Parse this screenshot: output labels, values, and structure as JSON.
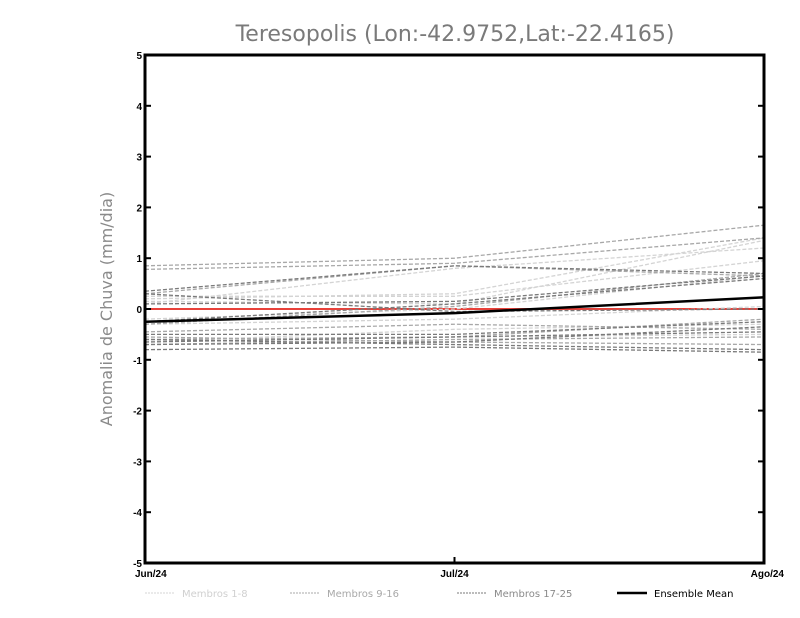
{
  "chart_data": {
    "type": "line",
    "title": "Teresopolis (Lon:-42.9752,Lat:-22.4165)",
    "xlabel": "",
    "ylabel": "Anomalia de Chuva (mm/dia)",
    "categories": [
      "Jun/24",
      "Jul/24",
      "Ago/24"
    ],
    "ylim": [
      -5,
      5
    ],
    "yticks": [
      "-5",
      "-4",
      "-3",
      "-2",
      "-1",
      "0",
      "1",
      "2",
      "3",
      "4",
      "5"
    ],
    "grid": false,
    "legend_position": "bottom",
    "reference_line": {
      "value": 0,
      "color": "#e8413a"
    },
    "groups": [
      {
        "name": "Membros 1-8",
        "color": "#d4d4d4",
        "dashed": true,
        "series": [
          [
            0.2,
            0.3,
            1.4
          ],
          [
            0.15,
            0.1,
            1.35
          ],
          [
            -0.2,
            0.0,
            0.65
          ],
          [
            0.25,
            0.25,
            0.95
          ],
          [
            -0.6,
            -0.55,
            -0.5
          ],
          [
            -0.65,
            -0.4,
            -0.3
          ],
          [
            0.1,
            0.8,
            1.2
          ],
          [
            -0.3,
            -0.2,
            0.05
          ]
        ]
      },
      {
        "name": "Membros 9-16",
        "color": "#a8a8a8",
        "dashed": true,
        "series": [
          [
            0.85,
            1.0,
            1.65
          ],
          [
            0.3,
            0.85,
            0.65
          ],
          [
            -0.55,
            -0.65,
            -0.7
          ],
          [
            -0.3,
            0.05,
            0.7
          ],
          [
            -0.7,
            -0.6,
            -0.55
          ],
          [
            -0.45,
            -0.3,
            -0.4
          ],
          [
            0.78,
            0.9,
            1.4
          ],
          [
            -0.6,
            -0.55,
            -0.2
          ]
        ]
      },
      {
        "name": "Membros 17-25",
        "color": "#7a7a7a",
        "dashed": true,
        "series": [
          [
            0.35,
            0.85,
            0.7
          ],
          [
            0.3,
            -0.05,
            0.0
          ],
          [
            -0.8,
            -0.75,
            -0.85
          ],
          [
            -0.65,
            -0.55,
            -0.45
          ],
          [
            -0.25,
            0.1,
            0.6
          ],
          [
            -0.7,
            -0.65,
            -0.35
          ],
          [
            -0.5,
            -0.5,
            -0.25
          ],
          [
            -0.6,
            -0.7,
            -0.8
          ],
          [
            0.1,
            0.15,
            0.65
          ]
        ]
      },
      {
        "name": "Ensemble Mean",
        "color": "#000000",
        "dashed": false,
        "series": [
          [
            -0.25,
            -0.08,
            0.23
          ]
        ]
      }
    ]
  }
}
